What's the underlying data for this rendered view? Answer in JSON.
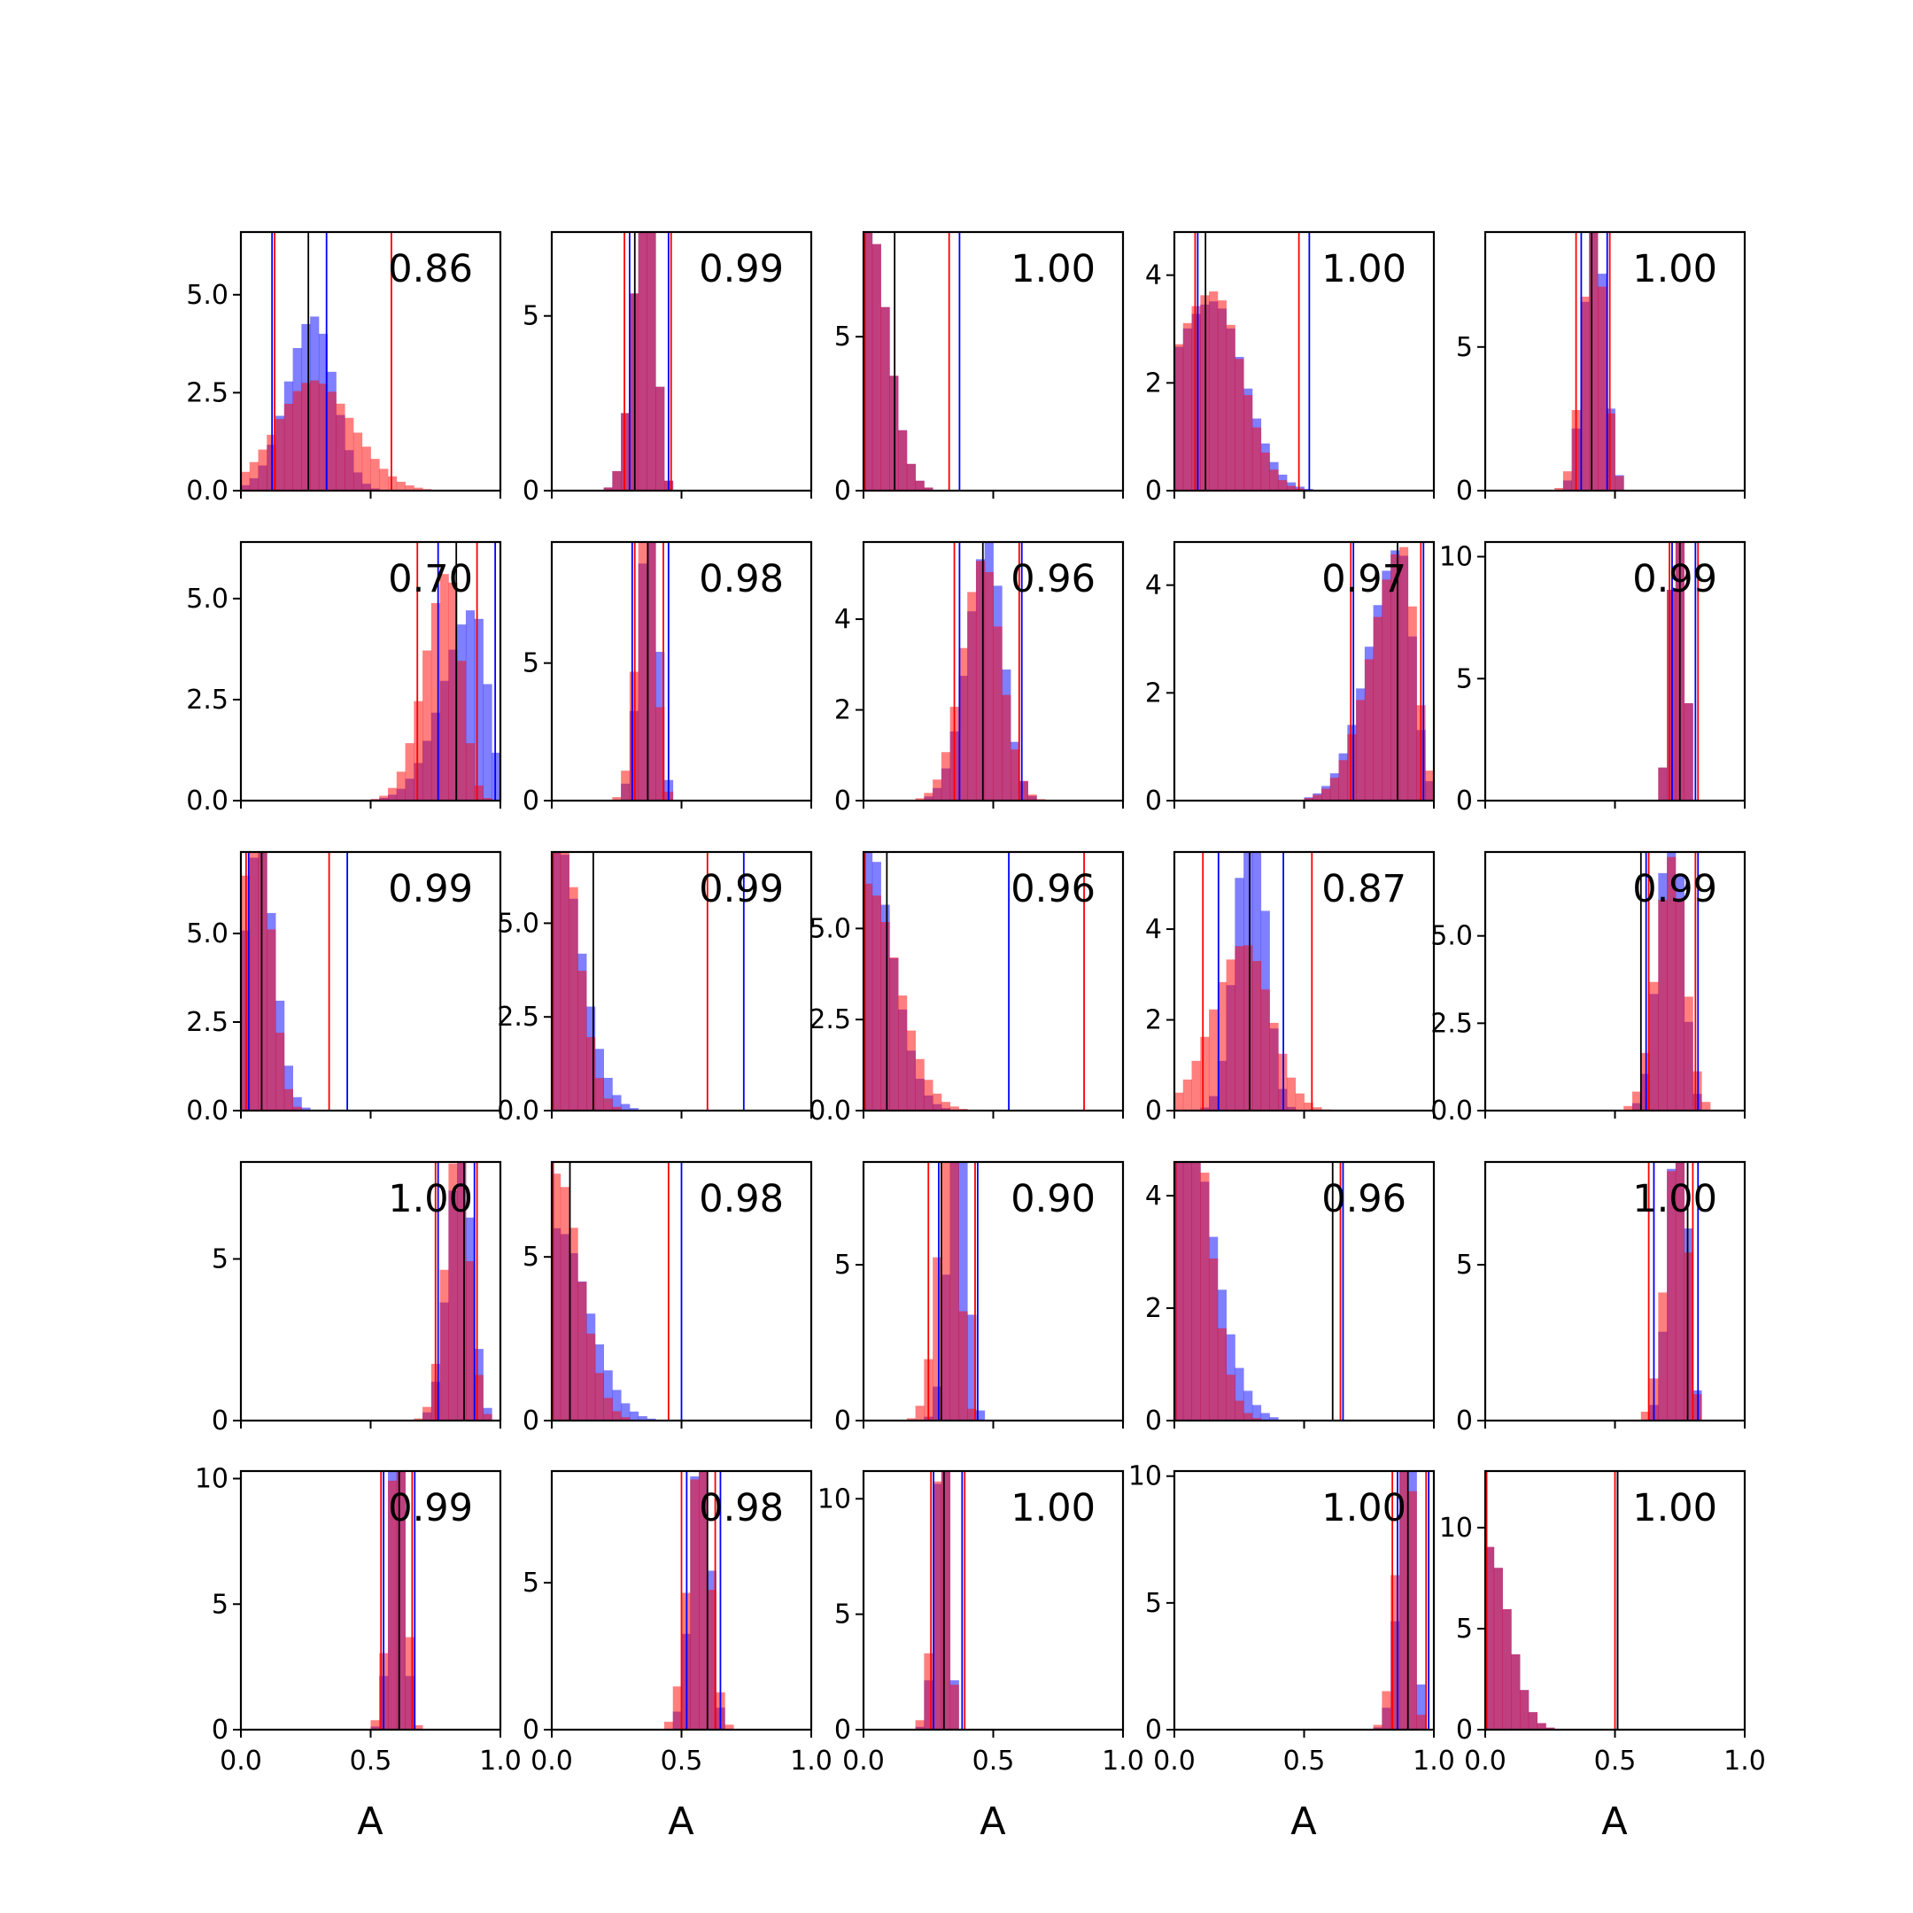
{
  "figure": {
    "colors": {
      "series_a": "#0000ff",
      "series_b": "#ff0000",
      "marker": "#000000",
      "axes": "#000000"
    },
    "alpha": 0.5
  },
  "chart_data": {
    "type": "histogram-grid",
    "grid": {
      "rows": 5,
      "cols": 5
    },
    "xlim": [
      0,
      1
    ],
    "xticks": [
      0,
      0.5,
      1.0
    ],
    "xtick_labels": [
      "0.0",
      "0.5",
      "1.0"
    ],
    "xlabel": "A",
    "bins": 30,
    "series_names": [],
    "panels": [
      {
        "label": "0.86",
        "ylim": [
          0,
          6.6
        ],
        "yticks": [
          0,
          2.5,
          5
        ],
        "ytick_labels": [
          "0.0",
          "2.5",
          "5.0"
        ],
        "blue": [
          0.28,
          0.1,
          0.08
        ],
        "red": [
          0.28,
          0.14,
          0.15
        ],
        "lines": {
          "blue": [
            0.12,
            0.33
          ],
          "red": [
            0.13,
            0.58
          ],
          "black": [
            0.26
          ]
        }
      },
      {
        "label": "0.99",
        "ylim": [
          0,
          7.4
        ],
        "yticks": [
          0,
          5
        ],
        "ytick_labels": [
          "0",
          "5"
        ],
        "blue": [
          0.37,
          0.05,
          0.03
        ],
        "red": [
          0.37,
          0.05,
          0.03
        ],
        "lines": {
          "blue": [
            0.3,
            0.45
          ],
          "red": [
            0.28,
            0.46
          ],
          "black": [
            0.32
          ]
        }
      },
      {
        "label": "1.00",
        "ylim": [
          0,
          8.4
        ],
        "yticks": [
          0,
          5
        ],
        "ytick_labels": [
          "0",
          "5"
        ],
        "blue": [
          0.01,
          0.11,
          0.08
        ],
        "red": [
          0.01,
          0.1,
          0.08
        ],
        "lines": {
          "blue": [
            0.005,
            0.37
          ],
          "red": [
            0.005,
            0.33
          ],
          "black": [
            0.12
          ]
        }
      },
      {
        "label": "1.00",
        "ylim": [
          0,
          4.8
        ],
        "yticks": [
          0,
          2,
          4
        ],
        "ytick_labels": [
          "0",
          "2",
          "4"
        ],
        "blue": [
          0.15,
          0.18,
          0.12
        ],
        "red": [
          0.15,
          0.17,
          0.11
        ],
        "lines": {
          "blue": [
            0.09,
            0.52
          ],
          "red": [
            0.08,
            0.48
          ],
          "black": [
            0.12
          ]
        }
      },
      {
        "label": "1.00",
        "ylim": [
          0,
          9.0
        ],
        "yticks": [
          0,
          5
        ],
        "ytick_labels": [
          "0",
          "5"
        ],
        "blue": [
          0.42,
          0.04,
          0.04
        ],
        "red": [
          0.42,
          0.045,
          0.04
        ],
        "lines": {
          "blue": [
            0.37,
            0.47
          ],
          "red": [
            0.35,
            0.48
          ],
          "black": [
            0.41
          ]
        }
      },
      {
        "label": "0.70",
        "ylim": [
          0,
          6.4
        ],
        "yticks": [
          0,
          2.5,
          5
        ],
        "ytick_labels": [
          "0.0",
          "2.5",
          "5.0"
        ],
        "blue": [
          0.9,
          0.12,
          0.05
        ],
        "red": [
          0.8,
          0.09,
          0.05
        ],
        "lines": {
          "blue": [
            0.76,
            0.98
          ],
          "red": [
            0.68,
            0.91
          ],
          "black": [
            0.83
          ]
        }
      },
      {
        "label": "0.98",
        "ylim": [
          0,
          9.4
        ],
        "yticks": [
          0,
          5
        ],
        "ytick_labels": [
          "0",
          "5"
        ],
        "blue": [
          0.38,
          0.04,
          0.03
        ],
        "red": [
          0.37,
          0.04,
          0.03
        ],
        "lines": {
          "blue": [
            0.31,
            0.45
          ],
          "red": [
            0.32,
            0.43
          ],
          "black": [
            0.37
          ]
        }
      },
      {
        "label": "0.96",
        "ylim": [
          0,
          5.7
        ],
        "yticks": [
          0,
          2,
          4
        ],
        "ytick_labels": [
          "0",
          "2",
          "4"
        ],
        "blue": [
          0.48,
          0.08,
          0.06
        ],
        "red": [
          0.46,
          0.08,
          0.07
        ],
        "lines": {
          "blue": [
            0.37,
            0.61
          ],
          "red": [
            0.35,
            0.6
          ],
          "black": [
            0.46
          ]
        }
      },
      {
        "label": "0.97",
        "ylim": [
          0,
          4.8
        ],
        "yticks": [
          0,
          2,
          4
        ],
        "ytick_labels": [
          "0",
          "2",
          "4"
        ],
        "blue": [
          0.87,
          0.12,
          0.05
        ],
        "red": [
          0.88,
          0.12,
          0.05
        ],
        "lines": {
          "blue": [
            0.69,
            0.96
          ],
          "red": [
            0.68,
            0.95
          ],
          "black": [
            0.86
          ]
        }
      },
      {
        "label": "0.99",
        "ylim": [
          0,
          10.6
        ],
        "yticks": [
          0,
          5,
          10
        ],
        "ytick_labels": [
          "0",
          "5",
          "10"
        ],
        "blue": [
          0.75,
          0.03,
          0.02
        ],
        "red": [
          0.75,
          0.03,
          0.02
        ],
        "lines": {
          "blue": [
            0.72,
            0.81
          ],
          "red": [
            0.71,
            0.82
          ],
          "black": [
            0.75
          ]
        }
      },
      {
        "label": "0.99",
        "ylim": [
          0,
          7.3
        ],
        "yticks": [
          0,
          2.5,
          5
        ],
        "ytick_labels": [
          "0.0",
          "2.5",
          "5.0"
        ],
        "blue": [
          0.07,
          0.06,
          0.06
        ],
        "red": [
          0.07,
          0.09,
          0.05
        ],
        "lines": {
          "blue": [
            0.03,
            0.41
          ],
          "red": [
            0.02,
            0.34
          ],
          "black": [
            0.08
          ]
        }
      },
      {
        "label": "0.99",
        "ylim": [
          0,
          6.9
        ],
        "yticks": [
          0,
          2.5,
          5
        ],
        "ytick_labels": [
          "0.0",
          "2.5",
          "5.0"
        ],
        "blue": [
          0.01,
          0.3,
          0.1
        ],
        "red": [
          0.01,
          0.2,
          0.08
        ],
        "lines": {
          "blue": [
            0.005,
            0.74
          ],
          "red": [
            0.005,
            0.6
          ],
          "black": [
            0.16
          ]
        }
      },
      {
        "label": "0.96",
        "ylim": [
          0,
          7.1
        ],
        "yticks": [
          0,
          2.5,
          5
        ],
        "ytick_labels": [
          "0.0",
          "2.5",
          "5.0"
        ],
        "blue": [
          0.01,
          0.3,
          0.1
        ],
        "red": [
          0.01,
          0.35,
          0.12
        ],
        "lines": {
          "blue": [
            0.005,
            0.56
          ],
          "red": [
            0.005,
            0.85
          ],
          "black": [
            0.09
          ]
        }
      },
      {
        "label": "0.87",
        "ylim": [
          0,
          5.7
        ],
        "yticks": [
          0,
          2,
          4
        ],
        "ytick_labels": [
          "0",
          "2",
          "4"
        ],
        "blue": [
          0.3,
          0.06,
          0.05
        ],
        "red": [
          0.27,
          0.12,
          0.1
        ],
        "lines": {
          "blue": [
            0.17,
            0.42
          ],
          "red": [
            0.11,
            0.53
          ],
          "black": [
            0.29
          ]
        }
      },
      {
        "label": "0.99",
        "ylim": [
          0,
          7.4
        ],
        "yticks": [
          0,
          2.5,
          5
        ],
        "ytick_labels": [
          "0.0",
          "2.5",
          "5.0"
        ],
        "blue": [
          0.72,
          0.05,
          0.04
        ],
        "red": [
          0.72,
          0.06,
          0.05
        ],
        "lines": {
          "blue": [
            0.62,
            0.82
          ],
          "red": [
            0.63,
            0.81
          ],
          "black": [
            0.6
          ]
        }
      },
      {
        "label": "1.00",
        "ylim": [
          0,
          8.0
        ],
        "yticks": [
          0,
          5
        ],
        "ytick_labels": [
          "0",
          "5"
        ],
        "blue": [
          0.85,
          0.05,
          0.04
        ],
        "red": [
          0.84,
          0.05,
          0.04
        ],
        "lines": {
          "blue": [
            0.76,
            0.9
          ],
          "red": [
            0.75,
            0.91
          ],
          "black": [
            0.86
          ]
        }
      },
      {
        "label": "0.98",
        "ylim": [
          0,
          7.9
        ],
        "yticks": [
          0,
          5
        ],
        "ytick_labels": [
          "0",
          "5"
        ],
        "blue": [
          0.02,
          0.25,
          0.12
        ],
        "red": [
          0.02,
          0.18,
          0.09
        ],
        "lines": {
          "blue": [
            0.005,
            0.5
          ],
          "red": [
            0.005,
            0.45
          ],
          "black": [
            0.07
          ]
        }
      },
      {
        "label": "0.90",
        "ylim": [
          0,
          8.3
        ],
        "yticks": [
          0,
          5
        ],
        "ytick_labels": [
          "0",
          "5"
        ],
        "blue": [
          0.37,
          0.04,
          0.03
        ],
        "red": [
          0.34,
          0.05,
          0.03
        ],
        "lines": {
          "blue": [
            0.29,
            0.44
          ],
          "red": [
            0.25,
            0.43
          ],
          "black": [
            0.3
          ]
        }
      },
      {
        "label": "0.96",
        "ylim": [
          0,
          4.6
        ],
        "yticks": [
          0,
          2,
          4
        ],
        "ytick_labels": [
          "0",
          "2",
          "4"
        ],
        "blue": [
          0.02,
          0.3,
          0.12
        ],
        "red": [
          0.03,
          0.2,
          0.09
        ],
        "lines": {
          "blue": [
            0.005,
            0.65
          ],
          "red": [
            0.005,
            0.64
          ],
          "black": [
            0.61
          ]
        }
      },
      {
        "label": "1.00",
        "ylim": [
          0,
          8.3
        ],
        "yticks": [
          0,
          5
        ],
        "ytick_labels": [
          "0",
          "5"
        ],
        "blue": [
          0.75,
          0.04,
          0.03
        ],
        "red": [
          0.75,
          0.05,
          0.03
        ],
        "lines": {
          "blue": [
            0.65,
            0.82
          ],
          "red": [
            0.63,
            0.8
          ],
          "black": [
            0.78
          ]
        }
      },
      {
        "label": "0.99",
        "ylim": [
          0,
          10.3
        ],
        "yticks": [
          0,
          5,
          10
        ],
        "ytick_labels": [
          "0",
          "5",
          "10"
        ],
        "blue": [
          0.61,
          0.03,
          0.02
        ],
        "red": [
          0.61,
          0.035,
          0.025
        ],
        "lines": {
          "blue": [
            0.55,
            0.67
          ],
          "red": [
            0.54,
            0.66
          ],
          "black": [
            0.61
          ]
        }
      },
      {
        "label": "0.98",
        "ylim": [
          0,
          8.8
        ],
        "yticks": [
          0,
          5
        ],
        "ytick_labels": [
          "0",
          "5"
        ],
        "blue": [
          0.58,
          0.04,
          0.03
        ],
        "red": [
          0.57,
          0.045,
          0.04
        ],
        "lines": {
          "blue": [
            0.52,
            0.65
          ],
          "red": [
            0.5,
            0.63
          ],
          "black": [
            0.6
          ]
        }
      },
      {
        "label": "1.00",
        "ylim": [
          0,
          11.2
        ],
        "yticks": [
          0,
          5,
          10
        ],
        "ytick_labels": [
          "0",
          "5",
          "10"
        ],
        "blue": [
          0.31,
          0.03,
          0.02
        ],
        "red": [
          0.31,
          0.035,
          0.02
        ],
        "lines": {
          "blue": [
            0.27,
            0.38
          ],
          "red": [
            0.26,
            0.39
          ],
          "black": [
            0.31
          ]
        }
      },
      {
        "label": "1.00",
        "ylim": [
          0,
          10.2
        ],
        "yticks": [
          0,
          5,
          10
        ],
        "ytick_labels": [
          "0",
          "5",
          "10"
        ],
        "blue": [
          0.91,
          0.04,
          0.02
        ],
        "red": [
          0.9,
          0.04,
          0.02
        ],
        "lines": {
          "blue": [
            0.86,
            0.98
          ],
          "red": [
            0.84,
            0.97
          ],
          "black": [
            0.9
          ]
        }
      },
      {
        "label": "1.00",
        "ylim": [
          0,
          12.8
        ],
        "yticks": [
          0,
          5,
          10
        ],
        "ytick_labels": [
          "0",
          "5",
          "10"
        ],
        "blue": [
          0.01,
          0.12,
          0.08
        ],
        "red": [
          0.01,
          0.13,
          0.08
        ],
        "lines": {
          "blue": [
            0.005,
            0.51
          ],
          "red": [
            0.005,
            0.5
          ],
          "black": [
            0.51
          ]
        }
      }
    ]
  }
}
